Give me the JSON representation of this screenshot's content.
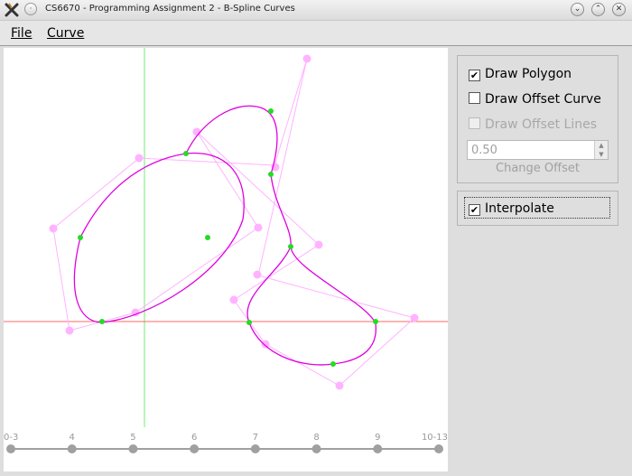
{
  "window": {
    "title": "CS6670 - Programming Assignment 2 - B-Spline Curves"
  },
  "menu": {
    "file": "File",
    "curve": "Curve"
  },
  "options": {
    "draw_polygon": {
      "label": "Draw Polygon",
      "checked": true
    },
    "draw_offset_curve": {
      "label": "Draw Offset Curve",
      "checked": false
    },
    "draw_offset_lines": {
      "label": "Draw Offset Lines",
      "checked": false,
      "enabled": false
    },
    "offset_value": "0.50",
    "change_offset": "Change Offset",
    "interpolate": {
      "label": "Interpolate",
      "checked": true
    }
  },
  "timeline": {
    "labels": [
      "0-3",
      "4",
      "5",
      "6",
      "7",
      "8",
      "9",
      "10-13"
    ]
  },
  "colors": {
    "control_polygon": "#ffb3ff",
    "curve": "#e000e0",
    "knot_points": "#22dd22",
    "x_axis": "#ff6a6a",
    "y_axis": "#88ee88",
    "timeline_nodes": "#a0a0a0"
  }
}
